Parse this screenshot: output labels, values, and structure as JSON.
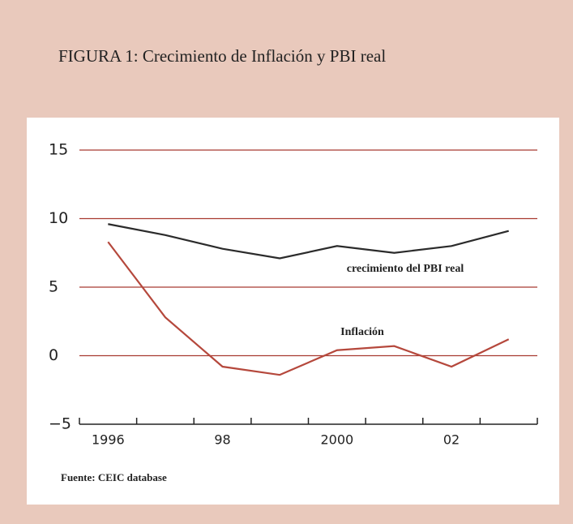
{
  "chart_data": {
    "type": "line",
    "title": "FIGURA 1: Crecimiento de Inflación y PBI real",
    "source": "Fuente: CEIC database",
    "categories": [
      "1996",
      null,
      "98",
      null,
      "2000",
      null,
      "02",
      null
    ],
    "series": [
      {
        "name": "crecimiento del PBI real",
        "color": "#2b2b2b",
        "values": [
          9.6,
          8.8,
          7.8,
          7.1,
          8.0,
          7.5,
          8.0,
          9.1
        ]
      },
      {
        "name": "Inflación",
        "color": "#b5483c",
        "values": [
          8.3,
          2.8,
          -0.8,
          -1.4,
          0.4,
          0.7,
          -0.8,
          1.2
        ]
      }
    ],
    "ylim": [
      -5,
      15
    ],
    "yticks": [
      {
        "value": -5,
        "label": "−5"
      },
      0,
      5,
      10,
      15
    ],
    "grid": true
  }
}
